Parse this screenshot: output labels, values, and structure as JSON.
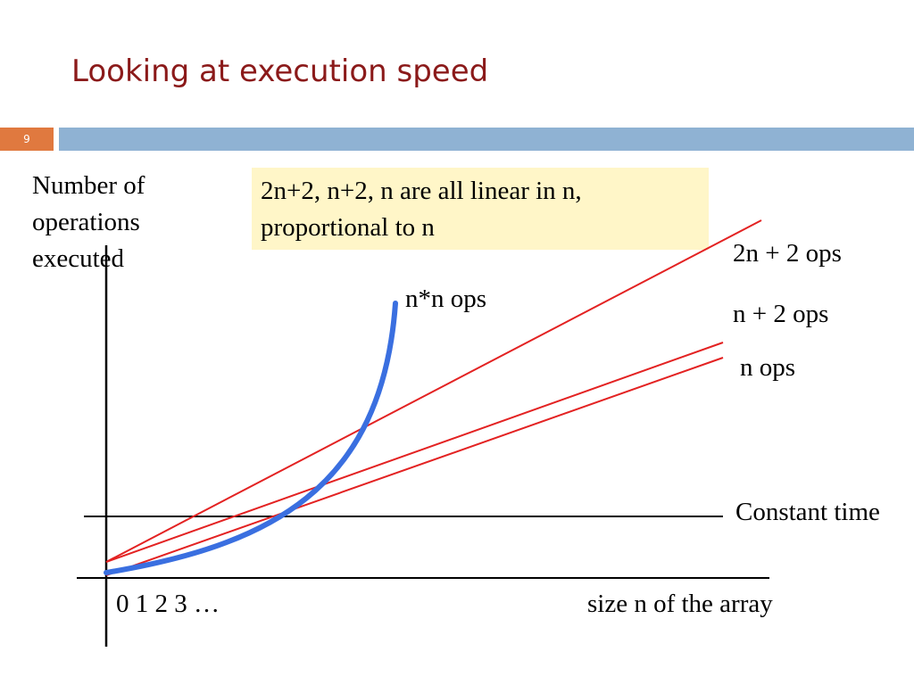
{
  "slide": {
    "title": "Looking at execution speed",
    "number": "9"
  },
  "diagram": {
    "y_axis_label": [
      "Number of",
      "operations",
      "executed"
    ],
    "x_axis_label": "size n of the array",
    "x_ticks": "0  1  2  3  …",
    "note": [
      "2n+2, n+2, n are all linear in n,",
      "proportional to n"
    ],
    "curves": {
      "two_n_plus_2": "2n + 2 ops",
      "n_plus_2": "n + 2 ops",
      "n": "n ops",
      "n_squared": "n*n ops",
      "constant": "Constant time"
    },
    "colors": {
      "linear": "#e32222",
      "quadratic": "#3a6fe0",
      "axis": "#000000",
      "note_bg": "#fff6c8",
      "title": "#8b1a1a",
      "bar": "#8fb2d3",
      "number_box": "#e0793f"
    }
  }
}
